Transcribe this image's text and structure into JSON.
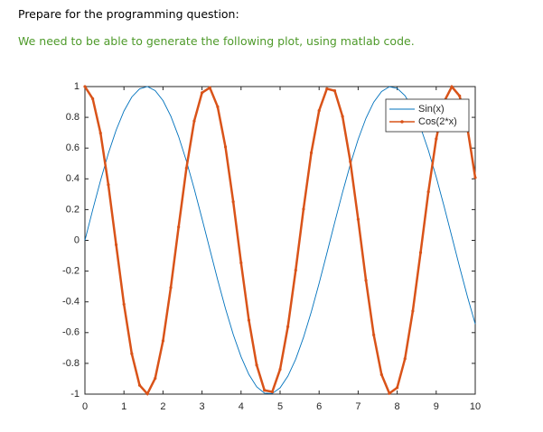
{
  "document": {
    "lines": [
      "Prepare for the programming question:",
      "We need to be able to generate the following plot, using matlab code."
    ]
  },
  "chart_data": {
    "type": "line",
    "x": [
      0,
      0.2,
      0.4,
      0.6,
      0.8,
      1,
      1.2,
      1.4,
      1.6,
      1.8,
      2,
      2.2,
      2.4,
      2.6,
      2.8,
      3,
      3.2,
      3.4,
      3.6,
      3.8,
      4,
      4.2,
      4.4,
      4.6,
      4.8,
      5,
      5.2,
      5.4,
      5.6,
      5.8,
      6,
      6.2,
      6.4,
      6.6,
      6.8,
      7,
      7.2,
      7.4,
      7.6,
      7.8,
      8,
      8.2,
      8.4,
      8.6,
      8.8,
      9,
      9.2,
      9.4,
      9.6,
      9.8,
      10
    ],
    "series": [
      {
        "name": "Sin(x)",
        "color": "#0072bd",
        "marker": false,
        "values": [
          0,
          0.199,
          0.389,
          0.565,
          0.717,
          0.841,
          0.932,
          0.985,
          1.0,
          0.974,
          0.909,
          0.808,
          0.675,
          0.516,
          0.335,
          0.141,
          -0.058,
          -0.256,
          -0.443,
          -0.612,
          -0.757,
          -0.872,
          -0.952,
          -0.994,
          -0.996,
          -0.959,
          -0.883,
          -0.773,
          -0.631,
          -0.465,
          -0.279,
          -0.083,
          0.117,
          0.312,
          0.494,
          0.657,
          0.794,
          0.899,
          0.968,
          0.999,
          0.989,
          0.941,
          0.855,
          0.734,
          0.585,
          0.412,
          0.223,
          0.025,
          -0.174,
          -0.366,
          -0.544
        ]
      },
      {
        "name": "Cos(2*x)",
        "color": "#d95319",
        "marker": true,
        "values": [
          1,
          0.921,
          0.697,
          0.362,
          -0.029,
          -0.416,
          -0.737,
          -0.942,
          -0.998,
          -0.897,
          -0.654,
          -0.307,
          0.087,
          0.469,
          0.776,
          0.96,
          0.993,
          0.869,
          0.608,
          0.251,
          -0.146,
          -0.519,
          -0.811,
          -0.975,
          -0.985,
          -0.839,
          -0.561,
          -0.194,
          0.203,
          0.57,
          0.844,
          0.986,
          0.973,
          0.806,
          0.512,
          0.137,
          -0.26,
          -0.615,
          -0.873,
          -0.995,
          -0.958,
          -0.77,
          -0.46,
          -0.079,
          0.316,
          0.66,
          0.901,
          0.999,
          0.939,
          0.731,
          0.408
        ]
      }
    ],
    "xlim": [
      0,
      10
    ],
    "xticks": [
      0,
      1,
      2,
      3,
      4,
      5,
      6,
      7,
      8,
      9,
      10
    ],
    "ylim": [
      -1,
      1
    ],
    "yticks": [
      -1,
      -0.8,
      -0.6,
      -0.4,
      -0.2,
      0,
      0.2,
      0.4,
      0.6,
      0.8,
      1
    ],
    "legend": "top-right"
  }
}
